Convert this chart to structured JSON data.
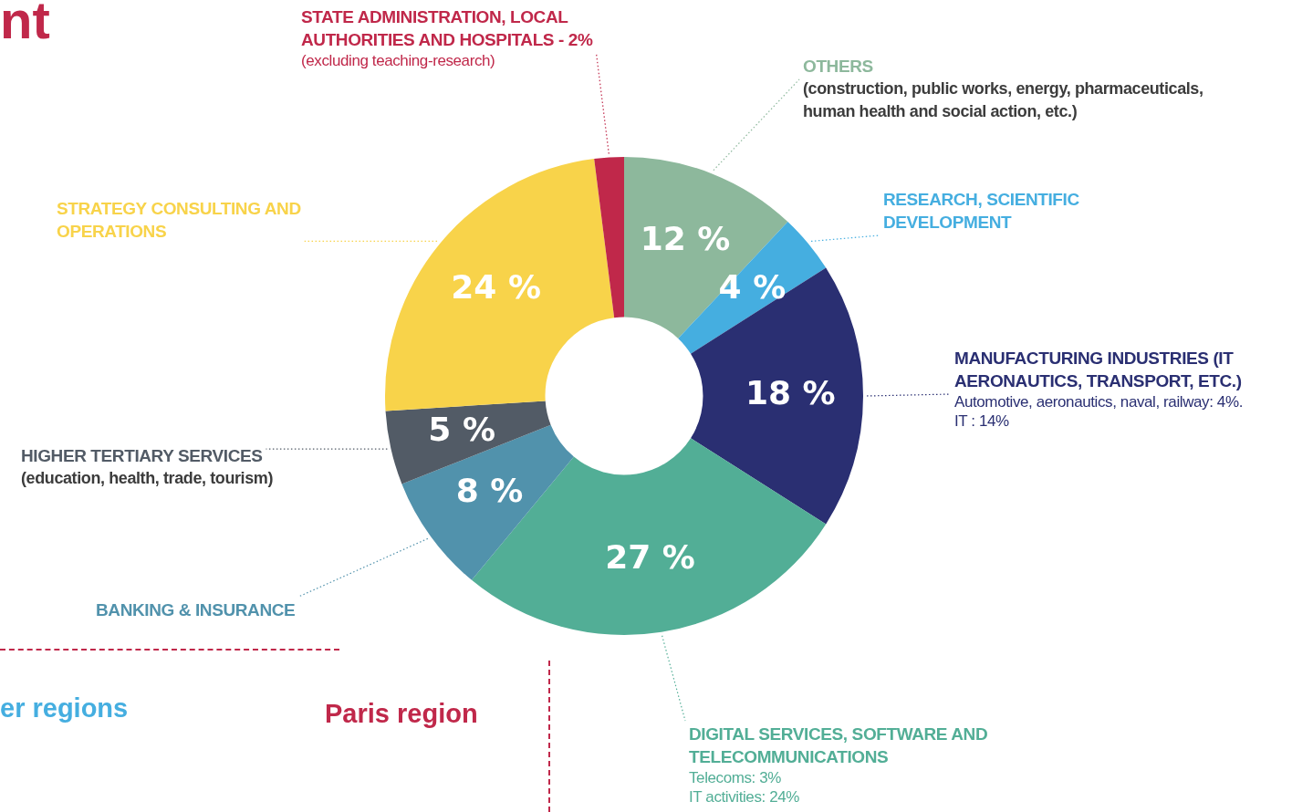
{
  "chart_data": {
    "type": "donut",
    "title": "nt",
    "categories": [
      "OTHERS",
      "RESEARCH, SCIENTIFIC DEVELOPMENT",
      "MANUFACTURING INDUSTRIES (IT AERONAUTICS, TRANSPORT, ETC.)",
      "DIGITAL SERVICES, SOFTWARE AND TELECOMMUNICATIONS",
      "BANKING & INSURANCE",
      "HIGHER TERTIARY SERVICES",
      "STRATEGY CONSULTING AND OPERATIONS",
      "STATE ADMINISTRATION, LOCAL AUTHORITIES AND HOSPITALS - 2%"
    ],
    "values": [
      12,
      4,
      18,
      27,
      8,
      5,
      24,
      2
    ],
    "colors": [
      "#8db89c",
      "#45aee0",
      "#2a2f72",
      "#52ae96",
      "#5192ac",
      "#525b66",
      "#f8d34a",
      "#c0284a"
    ],
    "value_labels": [
      "12 %",
      "4 %",
      "18 %",
      "27 %",
      "8 %",
      "5 %",
      "24 %",
      null
    ],
    "legend": false,
    "annotations": [
      "(excluding teaching-research)",
      "(construction, public works, energy, pharmaceuticals, human health and social action, etc.)",
      "Automotive, aeronautics, naval, railway: 4%.",
      "IT : 14%",
      "(education, health, trade, tourism)",
      "Telecoms: 3%",
      "IT activities: 24%",
      "er regions",
      "Paris region"
    ]
  }
}
